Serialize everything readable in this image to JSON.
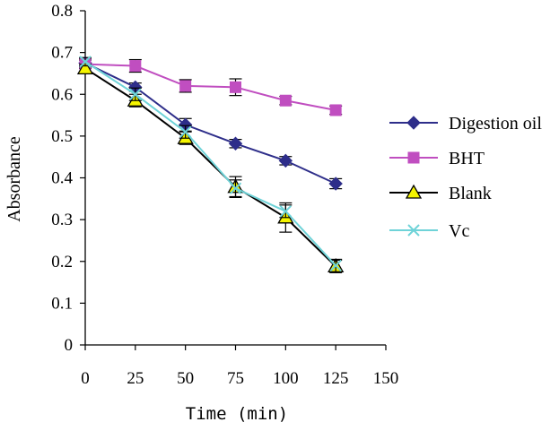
{
  "chart_data": {
    "type": "line",
    "xlabel": "Time (min)",
    "ylabel": "Absorbance",
    "xlim": [
      0,
      150
    ],
    "ylim": [
      0,
      0.8
    ],
    "x_ticks": [
      "0",
      "25",
      "50",
      "75",
      "100",
      "125",
      "150"
    ],
    "y_ticks": [
      "0",
      "0.1",
      "0.2",
      "0.3",
      "0.4",
      "0.5",
      "0.6",
      "0.7",
      "0.8"
    ],
    "grid": false,
    "legend_position": "right",
    "x": [
      0,
      25,
      50,
      75,
      100,
      125
    ],
    "series": [
      {
        "name": "Digestion oil",
        "color": "#2e2e8a",
        "marker": "diamond",
        "values": [
          0.675,
          0.617,
          0.527,
          0.482,
          0.441,
          0.386
        ],
        "errors": [
          0.01,
          0.01,
          0.015,
          0.01,
          0.01,
          0.012
        ]
      },
      {
        "name": "BHT",
        "color": "#c04ec0",
        "marker": "square",
        "values": [
          0.672,
          0.668,
          0.62,
          0.617,
          0.585,
          0.562
        ],
        "errors": [
          0.01,
          0.015,
          0.015,
          0.02,
          0.01,
          0.01
        ]
      },
      {
        "name": "Blank",
        "color": "#000000",
        "marker": "triangle",
        "values": [
          0.662,
          0.585,
          0.495,
          0.378,
          0.305,
          0.188
        ],
        "errors": [
          0.01,
          0.015,
          0.015,
          0.025,
          0.035,
          0.015
        ]
      },
      {
        "name": "Vc",
        "color": "#6fd3d8",
        "marker": "x",
        "values": [
          0.678,
          0.6,
          0.51,
          0.375,
          0.32,
          0.19
        ],
        "errors": [
          0.01,
          0.015,
          0.015,
          0.02,
          0.015,
          0.015
        ]
      }
    ]
  }
}
